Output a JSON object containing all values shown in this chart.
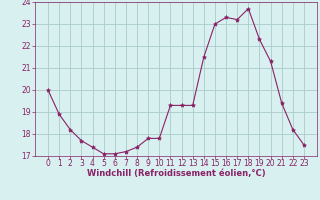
{
  "x": [
    0,
    1,
    2,
    3,
    4,
    5,
    6,
    7,
    8,
    9,
    10,
    11,
    12,
    13,
    14,
    15,
    16,
    17,
    18,
    19,
    20,
    21,
    22,
    23
  ],
  "y": [
    20.0,
    18.9,
    18.2,
    17.7,
    17.4,
    17.1,
    17.1,
    17.2,
    17.4,
    17.8,
    17.8,
    19.3,
    19.3,
    19.3,
    21.5,
    23.0,
    23.3,
    23.2,
    23.7,
    22.3,
    21.3,
    19.4,
    18.2,
    17.5
  ],
  "line_color": "#882266",
  "marker": "*",
  "marker_size": 3,
  "bg_color": "#d9f0f0",
  "grid_color": "#aacccc",
  "xlabel": "Windchill (Refroidissement éolien,°C)",
  "xlabel_color": "#882266",
  "tick_color": "#882266",
  "ylim": [
    17,
    24
  ],
  "yticks": [
    17,
    18,
    19,
    20,
    21,
    22,
    23,
    24
  ],
  "xticks": [
    0,
    1,
    2,
    3,
    4,
    5,
    6,
    7,
    8,
    9,
    10,
    11,
    12,
    13,
    14,
    15,
    16,
    17,
    18,
    19,
    20,
    21,
    22,
    23
  ],
  "figsize": [
    3.2,
    2.0
  ],
  "dpi": 100
}
